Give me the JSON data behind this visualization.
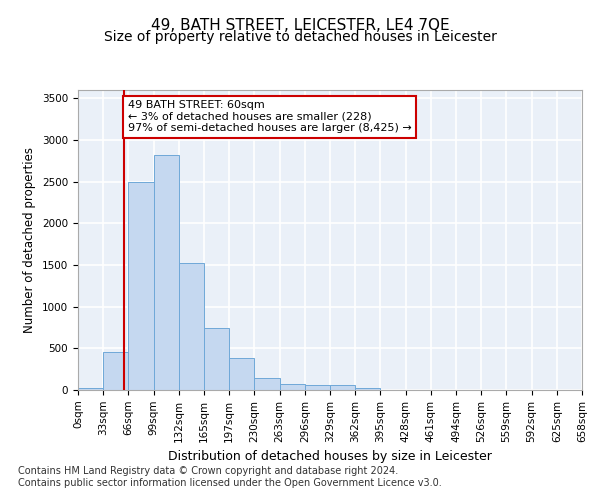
{
  "title": "49, BATH STREET, LEICESTER, LE4 7QE",
  "subtitle": "Size of property relative to detached houses in Leicester",
  "xlabel": "Distribution of detached houses by size in Leicester",
  "ylabel": "Number of detached properties",
  "bar_values": [
    20,
    460,
    2500,
    2820,
    1520,
    740,
    390,
    140,
    75,
    55,
    55,
    20,
    0,
    0,
    0,
    0,
    0,
    0,
    0,
    0
  ],
  "bin_labels": [
    "0sqm",
    "33sqm",
    "66sqm",
    "99sqm",
    "132sqm",
    "165sqm",
    "197sqm",
    "230sqm",
    "263sqm",
    "296sqm",
    "329sqm",
    "362sqm",
    "395sqm",
    "428sqm",
    "461sqm",
    "494sqm",
    "526sqm",
    "559sqm",
    "592sqm",
    "625sqm",
    "658sqm"
  ],
  "bar_color": "#c5d8f0",
  "bar_edge_color": "#6fa8d8",
  "marker_line_color": "#cc0000",
  "annotation_text": "49 BATH STREET: 60sqm\n← 3% of detached houses are smaller (228)\n97% of semi-detached houses are larger (8,425) →",
  "annotation_box_facecolor": "#ffffff",
  "annotation_box_edgecolor": "#cc0000",
  "ylim": [
    0,
    3600
  ],
  "yticks": [
    0,
    500,
    1000,
    1500,
    2000,
    2500,
    3000,
    3500
  ],
  "footer_text": "Contains HM Land Registry data © Crown copyright and database right 2024.\nContains public sector information licensed under the Open Government Licence v3.0.",
  "background_color": "#ffffff",
  "plot_background_color": "#eaf0f8",
  "grid_color": "#ffffff",
  "title_fontsize": 11,
  "subtitle_fontsize": 10,
  "xlabel_fontsize": 9,
  "ylabel_fontsize": 8.5,
  "tick_fontsize": 7.5,
  "footer_fontsize": 7,
  "marker_sqm": 60,
  "bin_edges": [
    0,
    33,
    66,
    99,
    132,
    165,
    197,
    230,
    263,
    296,
    329,
    362,
    395,
    428,
    461,
    494,
    526,
    559,
    592,
    625,
    658
  ]
}
